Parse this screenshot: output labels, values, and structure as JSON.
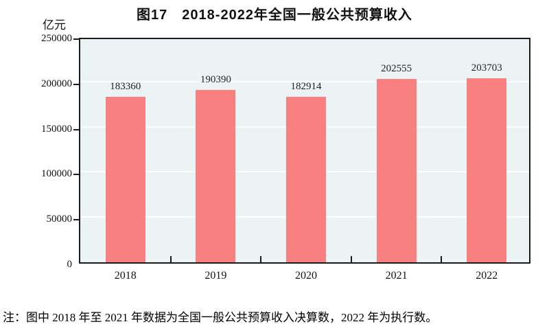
{
  "chart": {
    "title": "图17　2018-2022年全国一般公共预算收入",
    "unit": "亿元"
  },
  "note": "注：图中 2018 年至 2021 年数据为全国一般公共预算收入决算数，2022 年为执行数。",
  "chart_data": {
    "type": "bar",
    "title": "图17　2018-2022年全国一般公共预算收入",
    "ylabel": "亿元",
    "xlabel": "",
    "categories": [
      "2018",
      "2019",
      "2020",
      "2021",
      "2022"
    ],
    "values": [
      183360,
      190390,
      182914,
      202555,
      203703
    ],
    "data_labels": [
      "183360",
      "190390",
      "182914",
      "202555",
      "203703"
    ],
    "ylim": [
      0,
      250000
    ],
    "yticks": [
      0,
      50000,
      100000,
      150000,
      200000,
      250000
    ],
    "grid": "horizontal-white-gridlines",
    "legend_position": "none",
    "bar_color": "#F98080",
    "plot_bg_color": "#ECF3F5",
    "frame_color": "#1a1a1a"
  }
}
